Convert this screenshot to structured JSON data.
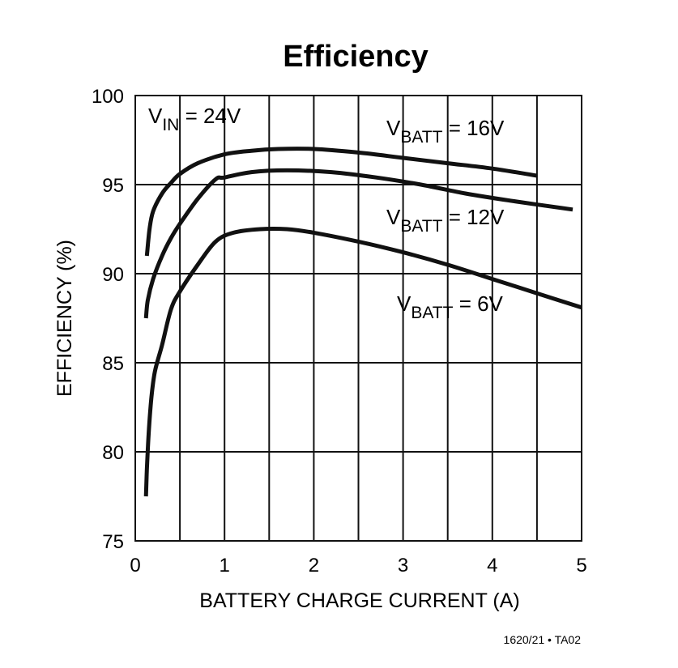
{
  "chart_data": {
    "type": "line",
    "title": "Efficiency",
    "xlabel": "BATTERY CHARGE CURRENT (A)",
    "ylabel": "EFFICIENCY (%)",
    "xlim": [
      0,
      5
    ],
    "ylim": [
      75,
      100
    ],
    "x_ticks": [
      0,
      1,
      2,
      3,
      4,
      5
    ],
    "x_minor_gridlines": [
      0.5,
      1.5,
      2.5,
      3.5,
      4.5
    ],
    "y_ticks": [
      75,
      80,
      85,
      90,
      95,
      100
    ],
    "grid": true,
    "condition": {
      "main": "V",
      "sub": "IN",
      "rest": " = 24V"
    },
    "series": [
      {
        "label": {
          "main": "V",
          "sub": "BATT",
          "rest": " = 16V"
        },
        "points": [
          [
            0.13,
            91.0
          ],
          [
            0.16,
            92.5
          ],
          [
            0.2,
            93.5
          ],
          [
            0.3,
            94.5
          ],
          [
            0.4,
            95.1
          ],
          [
            0.5,
            95.6
          ],
          [
            0.7,
            96.2
          ],
          [
            1.0,
            96.7
          ],
          [
            1.3,
            96.9
          ],
          [
            1.6,
            97.0
          ],
          [
            2.0,
            97.0
          ],
          [
            2.5,
            96.8
          ],
          [
            3.0,
            96.5
          ],
          [
            3.5,
            96.2
          ],
          [
            4.0,
            95.9
          ],
          [
            4.5,
            95.5
          ]
        ]
      },
      {
        "label": {
          "main": "V",
          "sub": "BATT",
          "rest": " = 12V"
        },
        "points": [
          [
            0.12,
            87.5
          ],
          [
            0.14,
            88.5
          ],
          [
            0.2,
            89.7
          ],
          [
            0.3,
            91.0
          ],
          [
            0.4,
            92.0
          ],
          [
            0.5,
            92.8
          ],
          [
            0.7,
            94.2
          ],
          [
            0.9,
            95.3
          ],
          [
            1.0,
            95.4
          ],
          [
            1.3,
            95.7
          ],
          [
            1.7,
            95.8
          ],
          [
            2.2,
            95.7
          ],
          [
            2.7,
            95.4
          ],
          [
            3.2,
            95.0
          ],
          [
            3.7,
            94.5
          ],
          [
            4.2,
            94.1
          ],
          [
            4.9,
            93.6
          ]
        ]
      },
      {
        "label": {
          "main": "V",
          "sub": "BATT",
          "rest": " = 6V"
        },
        "points": [
          [
            0.12,
            77.5
          ],
          [
            0.13,
            79.0
          ],
          [
            0.15,
            81.0
          ],
          [
            0.18,
            83.0
          ],
          [
            0.22,
            84.5
          ],
          [
            0.3,
            86.0
          ],
          [
            0.4,
            88.0
          ],
          [
            0.5,
            89.0
          ],
          [
            0.7,
            90.5
          ],
          [
            0.9,
            91.8
          ],
          [
            1.1,
            92.3
          ],
          [
            1.4,
            92.5
          ],
          [
            1.7,
            92.5
          ],
          [
            2.0,
            92.3
          ],
          [
            2.5,
            91.8
          ],
          [
            3.0,
            91.2
          ],
          [
            3.5,
            90.5
          ],
          [
            4.0,
            89.7
          ],
          [
            4.5,
            88.9
          ],
          [
            5.0,
            88.1
          ]
        ]
      }
    ]
  },
  "footnote": "1620/21 • TA02"
}
